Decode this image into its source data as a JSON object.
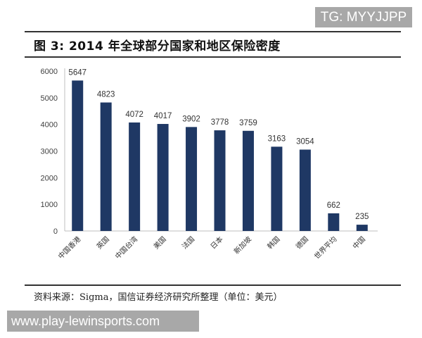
{
  "watermark_top": "TG: MYYJJPP",
  "header": {
    "title": "图 3:  2014 年全球部分国家和地区保险密度"
  },
  "footer": {
    "source": "资料来源：Sigma，国信证券经济研究所整理（单位：美元）"
  },
  "watermark_bottom": "www.play-lewinsports.com",
  "colors": {
    "bar": "#1f3864",
    "axis": "#bfbfbf",
    "text": "#404040"
  },
  "chart_data": {
    "type": "bar",
    "title": "2014 年全球部分国家和地区保险密度",
    "xlabel": "",
    "ylabel": "",
    "unit": "美元",
    "ylim": [
      0,
      6000
    ],
    "yticks": [
      0,
      1000,
      2000,
      3000,
      4000,
      5000,
      6000
    ],
    "grid": false,
    "legend": null,
    "categories": [
      "中国香港",
      "英国",
      "中国台湾",
      "美国",
      "法国",
      "日本",
      "新加坡",
      "韩国",
      "德国",
      "世界平均",
      "中国"
    ],
    "values": [
      5647,
      4823,
      4072,
      4017,
      3902,
      3778,
      3759,
      3163,
      3054,
      662,
      235
    ],
    "data_labels": true
  }
}
